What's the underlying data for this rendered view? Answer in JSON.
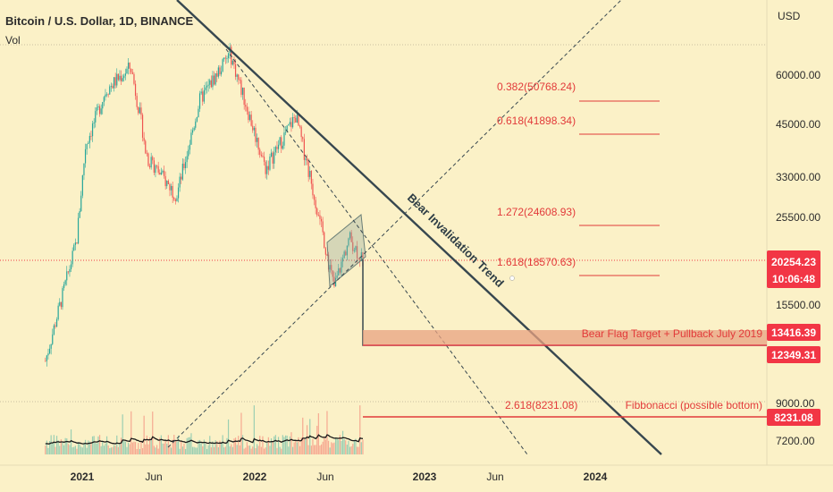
{
  "header": {
    "title": "Bitcoin / U.S. Dollar, 1D, BINANCE",
    "volume_label": "Vol"
  },
  "axis": {
    "currency": "USD",
    "y_ticks": [
      "60000.00",
      "45000.00",
      "33000.00",
      "25500.00",
      "15500.00",
      "9000.00",
      "7200.00"
    ],
    "x_ticks": [
      "2021",
      "Jun",
      "2022",
      "Jun",
      "2023",
      "Jun",
      "2024"
    ]
  },
  "price_tags": [
    {
      "label": "20254.23",
      "bg": "#f23645"
    },
    {
      "label": "10:06:48",
      "bg": "#f23645"
    },
    {
      "label": "13416.39",
      "bg": "#f23645"
    },
    {
      "label": "12349.31",
      "bg": "#f23645"
    },
    {
      "label": "8231.08",
      "bg": "#f23645"
    }
  ],
  "fib_levels": [
    {
      "label": "0.382(50768.24)"
    },
    {
      "label": "0.618(41898.34)"
    },
    {
      "label": "1.272(24608.93)"
    },
    {
      "label": "1.618(18570.63)"
    },
    {
      "label": "2.618(8231.08)"
    }
  ],
  "annotations": {
    "trend_label": "Bear Invalidation Trend",
    "target_label": "Bear Flag Target + Pullback July 2019",
    "fib_bottom_label": "Fibbonacci (possible bottom)"
  },
  "colors": {
    "background": "#fbf1c7",
    "up": "#26a69a",
    "down": "#ef5350",
    "accent": "#f23645",
    "trendline": "#37474f",
    "zone": "#e8a282"
  },
  "chart_data": {
    "type": "candlestick",
    "title": "Bitcoin / U.S. Dollar, 1D, BINANCE",
    "y_unit": "USD",
    "y_scale": "log",
    "x_range": [
      "2020-10",
      "2024-06"
    ],
    "price_path": [
      {
        "date": "2020-10-15",
        "close": 11500
      },
      {
        "date": "2020-12-20",
        "close": 23000
      },
      {
        "date": "2021-01-08",
        "close": 40000
      },
      {
        "date": "2021-02-20",
        "close": 55000
      },
      {
        "date": "2021-04-14",
        "close": 63000
      },
      {
        "date": "2021-05-20",
        "close": 37000
      },
      {
        "date": "2021-07-20",
        "close": 30000
      },
      {
        "date": "2021-09-07",
        "close": 52000
      },
      {
        "date": "2021-11-10",
        "close": 68000
      },
      {
        "date": "2022-01-24",
        "close": 35000
      },
      {
        "date": "2022-03-29",
        "close": 47500
      },
      {
        "date": "2022-05-12",
        "close": 28000
      },
      {
        "date": "2022-06-18",
        "close": 17600
      },
      {
        "date": "2022-07-20",
        "close": 23500
      },
      {
        "date": "2022-08-20",
        "close": 20254
      }
    ],
    "current_price": 20254.23,
    "levels": [
      {
        "label": "0.382",
        "value": 50768.24
      },
      {
        "label": "0.618",
        "value": 41898.34
      },
      {
        "label": "1.272",
        "value": 24608.93
      },
      {
        "label": "1.618",
        "value": 18570.63
      },
      {
        "label": "2.618",
        "value": 8231.08
      }
    ],
    "target_zone": [
      12349.31,
      13416.39
    ],
    "grid": false
  }
}
